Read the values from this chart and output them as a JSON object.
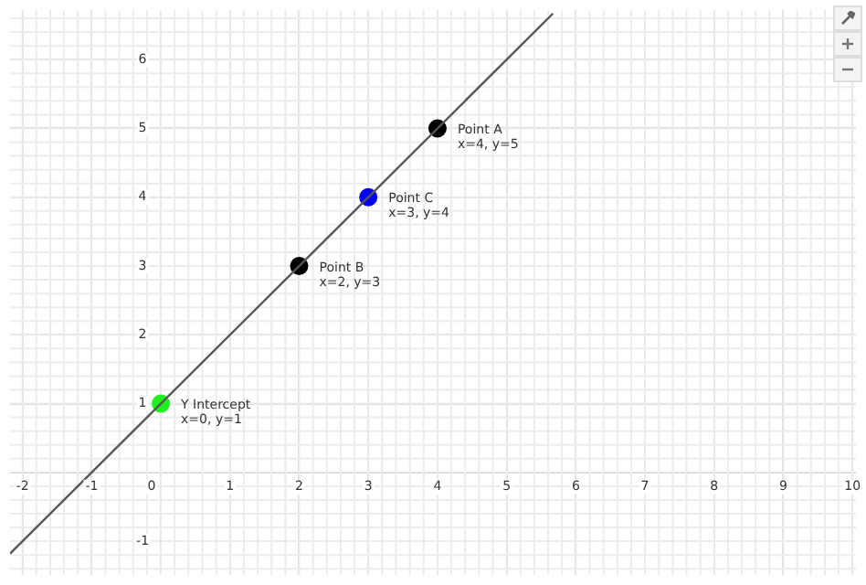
{
  "chart_data": {
    "type": "scatter",
    "xlim": [
      -2.18,
      10.05
    ],
    "ylim": [
      -1.49,
      6.72
    ],
    "xticks": [
      -2,
      -1,
      0,
      1,
      2,
      3,
      4,
      5,
      6,
      7,
      8,
      9,
      10
    ],
    "yticks": [
      -1,
      {
        "value": 0,
        "label": null
      },
      1,
      2,
      3,
      4,
      5,
      6
    ],
    "grid": true,
    "legend": false,
    "marker": "circle",
    "series": [
      {
        "type": "line",
        "color": "#555555",
        "x": [
          -2.18,
          5.67
        ],
        "values": [
          -1.18,
          6.67
        ],
        "marker": "none",
        "line_style": "solid"
      },
      {
        "x": [
          4,
          2,
          3,
          0
        ],
        "values": [
          5,
          3,
          4,
          1
        ],
        "colors": [
          "#000000",
          "#000000",
          "#0000ee",
          "#22ee22"
        ]
      }
    ],
    "annotations": [
      {
        "text": "Point A\nx=4, y=5",
        "x": 4,
        "y": 5
      },
      {
        "text": "Point B\nx=2, y=3",
        "x": 2,
        "y": 3
      },
      {
        "text": "Point C\nx=3, y=4",
        "x": 3,
        "y": 4
      },
      {
        "text": "Y Intercept\nx=0, y=1",
        "x": 0,
        "y": 1
      }
    ]
  }
}
